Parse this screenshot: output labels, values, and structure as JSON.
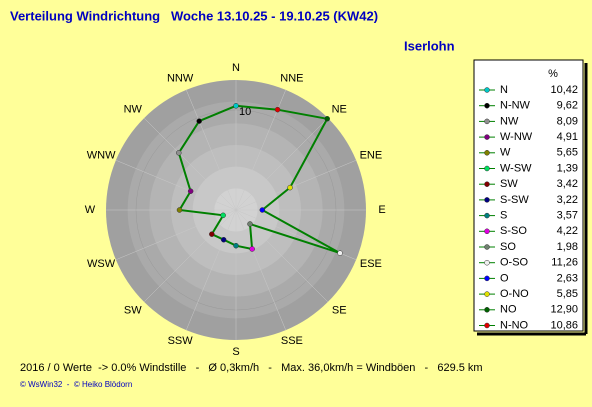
{
  "chart_data": {
    "type": "radar",
    "title": "Verteilung Windrichtung   Woche 13.10.25 - 19.10.25 (KW42)",
    "location": "Iserlohn",
    "unit": "%",
    "axis_labels": [
      "N",
      "NNE",
      "NE",
      "ENE",
      "E",
      "ESE",
      "SE",
      "SSE",
      "S",
      "SSW",
      "SW",
      "WSW",
      "W",
      "WNW",
      "NW",
      "NNW"
    ],
    "categories": [
      "N",
      "N-NW",
      "NW",
      "W-NW",
      "W",
      "W-SW",
      "SW",
      "S-SW",
      "S",
      "S-SO",
      "SO",
      "O-SO",
      "O",
      "O-NO",
      "NO",
      "N-NO"
    ],
    "values": [
      10.42,
      9.62,
      8.09,
      4.91,
      5.65,
      1.39,
      3.42,
      3.22,
      3.57,
      4.22,
      1.98,
      11.26,
      2.63,
      5.85,
      12.9,
      10.86
    ],
    "value_labels": [
      "10,42",
      "9,62",
      "8,09",
      "4,91",
      "5,65",
      "1,39",
      "3,42",
      "3,22",
      "3,57",
      "4,22",
      "1,98",
      "11,26",
      "2,63",
      "5,85",
      "12,90",
      "10,86"
    ],
    "marker_colors": [
      "#00c8c8",
      "#000000",
      "#909090",
      "#800080",
      "#808000",
      "#00e060",
      "#800000",
      "#000080",
      "#008080",
      "#e000e0",
      "#708070",
      "#f0f0f0",
      "#0000ff",
      "#e0e000",
      "#006000",
      "#e00000"
    ],
    "line_color": "#008000",
    "rlim": [
      0,
      13
    ],
    "rticks": [
      10
    ],
    "footer": "2016 / 0 Werte  -> 0.0% Windstille   -   Ø 0,3km/h   -   Max. 36,0km/h = Windböen   -   629.5 km",
    "credit": "© WsWin32  -  © Heiko Blödorn"
  }
}
